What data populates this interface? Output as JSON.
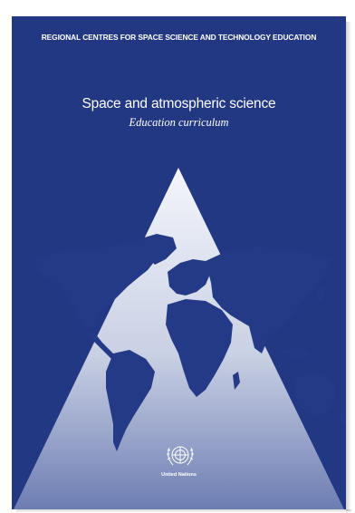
{
  "cover": {
    "series": "REGIONAL CENTRES FOR SPACE SCIENCE AND TECHNOLOGY EDUCATION",
    "title": "Space and atmospheric science",
    "subtitle": "Education curriculum",
    "publisher": "United Nations",
    "publisher_emblem": "un-emblem-icon",
    "illustration": "world-map",
    "colors": {
      "background": "#233883",
      "triangle": "#e6e9f2",
      "map": "#243a87",
      "text": "#ffffff"
    }
  }
}
